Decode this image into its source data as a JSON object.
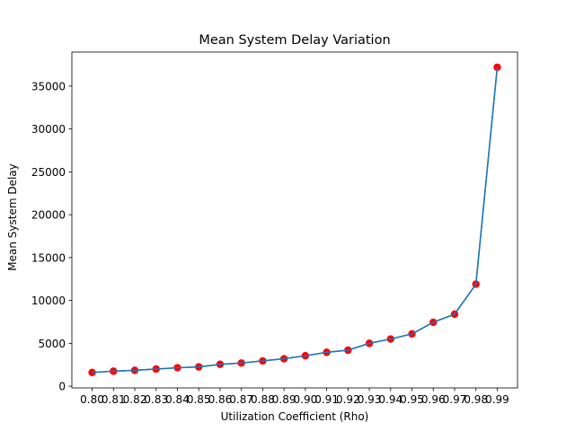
{
  "chart_data": {
    "type": "line",
    "title": "Mean System Delay Variation",
    "xlabel": "Utilization Coefficient (Rho)",
    "ylabel": "Mean System Delay",
    "x": [
      0.8,
      0.81,
      0.82,
      0.83,
      0.84,
      0.85,
      0.86,
      0.87,
      0.88,
      0.89,
      0.9,
      0.91,
      0.92,
      0.93,
      0.94,
      0.95,
      0.96,
      0.97,
      0.98,
      0.99
    ],
    "x_tick_labels": [
      "0.80",
      "0.81",
      "0.82",
      "0.83",
      "0.84",
      "0.85",
      "0.86",
      "0.87",
      "0.88",
      "0.89",
      "0.90",
      "0.91",
      "0.92",
      "0.93",
      "0.94",
      "0.95",
      "0.96",
      "0.97",
      "0.98",
      "0.99"
    ],
    "y_ticks": [
      0,
      5000,
      10000,
      15000,
      20000,
      25000,
      30000,
      35000
    ],
    "y_tick_labels": [
      "0",
      "5000",
      "10000",
      "15000",
      "20000",
      "25000",
      "30000",
      "35000"
    ],
    "xlim": [
      0.7905,
      0.9995
    ],
    "ylim": [
      -200,
      38970
    ],
    "grid": false,
    "series": [
      {
        "values": [
          1600,
          1750,
          1850,
          2000,
          2150,
          2250,
          2550,
          2700,
          2950,
          3200,
          3550,
          3950,
          4200,
          5000,
          5500,
          6100,
          7450,
          8400,
          11900,
          37200
        ],
        "line_color": "#1f77b4",
        "marker_color": "#ff0000"
      }
    ]
  }
}
